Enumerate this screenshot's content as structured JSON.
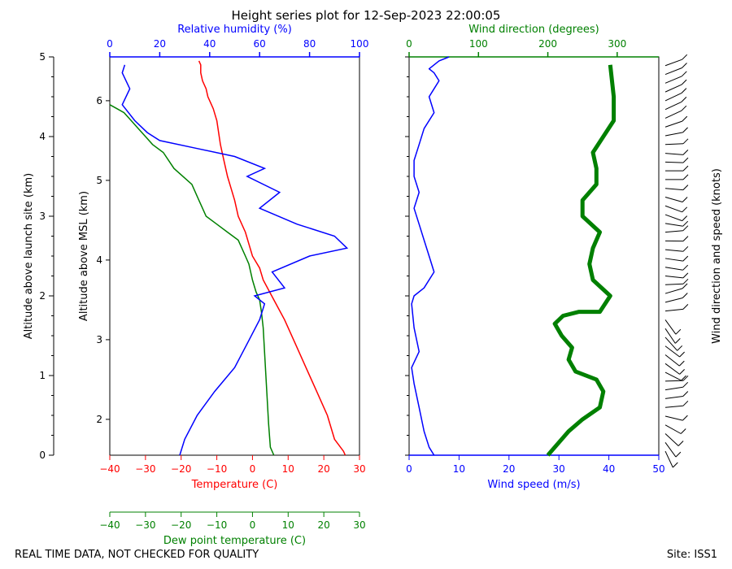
{
  "chart_data": {
    "type": "line",
    "title": "Height series plot for 12-Sep-2023 22:00:05",
    "footer_left": "REAL TIME DATA, NOT CHECKED FOR QUALITY",
    "footer_right": "Site: ISS1",
    "colors": {
      "temperature": "#ff0000",
      "dewpoint": "#008000",
      "humidity": "#0000ff",
      "wind_speed": "#0000ff",
      "wind_direction": "#008000",
      "barbs": "#000000"
    },
    "left_panel": {
      "temperature_axis": {
        "label": "Temperature (C)",
        "range": [
          -40,
          30
        ],
        "ticks": [
          -40,
          -30,
          -20,
          -10,
          0,
          10,
          20,
          30
        ]
      },
      "dewpoint_axis": {
        "label": "Dew point temperature (C)",
        "range": [
          -40,
          30
        ],
        "ticks": [
          -40,
          -30,
          -20,
          -10,
          0,
          10,
          20,
          30
        ]
      },
      "humidity_axis": {
        "label": "Relative humidity (%)",
        "range": [
          0,
          100
        ],
        "ticks": [
          0,
          20,
          40,
          60,
          80,
          100
        ]
      },
      "agl_axis": {
        "label": "Altitude above launch site (km)",
        "range": [
          0,
          5
        ],
        "ticks": [
          0,
          1,
          2,
          3,
          4,
          5
        ]
      },
      "msl_axis": {
        "label": "Altitude above MSL (km)",
        "ticks": [
          2,
          3,
          4,
          5,
          6
        ]
      },
      "series": [
        {
          "name": "Temperature",
          "axis": "temperature",
          "x": [
            26,
            25.5,
            23,
            21,
            18,
            15,
            12,
            9,
            6,
            3,
            2,
            0,
            -2,
            -4,
            -5,
            -6,
            -7,
            -8,
            -9,
            -9.5,
            -10,
            -11,
            -12.5,
            -13,
            -14,
            -14.5,
            -14.5,
            -15
          ],
          "y": [
            0,
            0.05,
            0.2,
            0.5,
            0.8,
            1.1,
            1.4,
            1.7,
            1.95,
            2.2,
            2.35,
            2.5,
            2.8,
            3.0,
            3.2,
            3.35,
            3.5,
            3.7,
            3.9,
            4.05,
            4.2,
            4.35,
            4.5,
            4.6,
            4.7,
            4.8,
            4.9,
            4.95
          ]
        },
        {
          "name": "Dew point",
          "axis": "dewpoint",
          "x": [
            6,
            5,
            4.5,
            4,
            3.5,
            3,
            2.5,
            2,
            1,
            0,
            -1,
            -2,
            -4,
            -7,
            -10,
            -13,
            -15,
            -17,
            -22,
            -25,
            -28,
            -30,
            -32,
            -34,
            -36,
            -38,
            -40
          ],
          "y": [
            0,
            0.1,
            0.4,
            0.8,
            1.2,
            1.6,
            1.8,
            1.95,
            2.05,
            2.2,
            2.4,
            2.5,
            2.7,
            2.8,
            2.9,
            3.0,
            3.2,
            3.4,
            3.6,
            3.8,
            3.9,
            4.0,
            4.1,
            4.2,
            4.3,
            4.35,
            4.4
          ]
        },
        {
          "name": "Relative humidity",
          "axis": "humidity",
          "x": [
            28,
            30,
            35,
            42,
            50,
            55,
            60,
            62,
            58,
            70,
            65,
            80,
            95,
            90,
            75,
            60,
            68,
            55,
            62,
            50,
            35,
            20,
            15,
            10,
            5,
            8,
            5,
            6
          ],
          "y": [
            0,
            0.2,
            0.5,
            0.8,
            1.1,
            1.4,
            1.7,
            1.9,
            2.0,
            2.1,
            2.3,
            2.5,
            2.6,
            2.75,
            2.9,
            3.1,
            3.3,
            3.5,
            3.6,
            3.75,
            3.85,
            3.95,
            4.05,
            4.2,
            4.4,
            4.6,
            4.8,
            4.9
          ]
        }
      ]
    },
    "right_panel": {
      "speed_axis": {
        "label": "Wind speed (m/s)",
        "range": [
          0,
          50
        ],
        "ticks": [
          0,
          10,
          20,
          30,
          40,
          50
        ]
      },
      "direction_axis": {
        "label": "Wind direction (degrees)",
        "range": [
          0,
          360
        ],
        "ticks": [
          0,
          100,
          200,
          300
        ]
      },
      "barb_label": "Wind direction and speed (knots)",
      "series": [
        {
          "name": "Wind speed",
          "axis": "speed",
          "x": [
            5,
            4,
            3,
            2,
            1,
            0.5,
            2,
            1,
            0.5,
            1,
            3,
            5,
            4,
            3,
            2,
            1,
            2,
            1,
            1,
            2,
            3,
            5,
            4,
            5,
            6,
            5,
            4,
            5,
            6,
            8
          ],
          "y": [
            0,
            0.1,
            0.3,
            0.6,
            0.9,
            1.1,
            1.3,
            1.6,
            1.9,
            2.0,
            2.1,
            2.3,
            2.5,
            2.7,
            2.9,
            3.1,
            3.3,
            3.5,
            3.7,
            3.9,
            4.1,
            4.3,
            4.5,
            4.6,
            4.7,
            4.8,
            4.85,
            4.9,
            4.95,
            5.0
          ]
        },
        {
          "name": "Wind direction",
          "axis": "direction",
          "x": [
            200,
            205,
            230,
            250,
            275,
            280,
            270,
            240,
            230,
            235,
            220,
            210,
            222,
            245,
            275,
            290,
            265,
            260,
            265,
            275,
            250,
            250,
            270,
            270,
            265,
            280,
            295,
            295,
            290
          ],
          "y": [
            0,
            0.05,
            0.3,
            0.45,
            0.6,
            0.8,
            0.95,
            1.05,
            1.2,
            1.35,
            1.5,
            1.65,
            1.75,
            1.8,
            1.8,
            2.0,
            2.2,
            2.4,
            2.6,
            2.8,
            3.0,
            3.2,
            3.4,
            3.6,
            3.8,
            4.0,
            4.2,
            4.5,
            4.9
          ]
        }
      ]
    }
  }
}
